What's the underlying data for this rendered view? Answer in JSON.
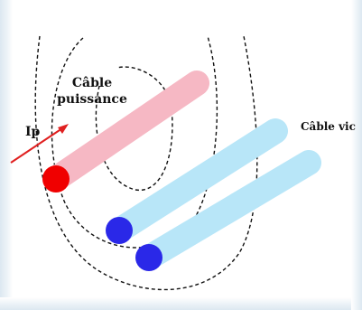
{
  "diagram": {
    "labels": {
      "power_cable": [
        "Câble",
        "puissance"
      ],
      "victim_cable": "Câble vic",
      "current": "Ip"
    },
    "colors": {
      "power_cable_body": "#f6b8c4",
      "power_cable_end": "#f00000",
      "victim_cable_body": "#b8e6f8",
      "victim_cable_end": "#2a28e8",
      "field_lines": "#111111",
      "current_arrow": "#e02020",
      "border_tint": "#dce8f1"
    }
  }
}
